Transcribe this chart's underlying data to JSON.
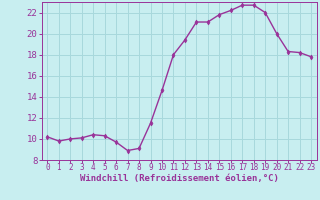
{
  "x": [
    0,
    1,
    2,
    3,
    4,
    5,
    6,
    7,
    8,
    9,
    10,
    11,
    12,
    13,
    14,
    15,
    16,
    17,
    18,
    19,
    20,
    21,
    22,
    23
  ],
  "y": [
    10.2,
    9.8,
    10.0,
    10.1,
    10.4,
    10.3,
    9.7,
    8.9,
    9.1,
    11.5,
    14.6,
    18.0,
    19.4,
    21.1,
    21.1,
    21.8,
    22.2,
    22.7,
    22.7,
    22.0,
    20.0,
    18.3,
    18.2,
    17.8
  ],
  "xlabel": "Windchill (Refroidissement éolien,°C)",
  "ylabel": "",
  "ylim": [
    8,
    23
  ],
  "xlim": [
    -0.5,
    23.5
  ],
  "yticks": [
    8,
    10,
    12,
    14,
    16,
    18,
    20,
    22
  ],
  "xticks": [
    0,
    1,
    2,
    3,
    4,
    5,
    6,
    7,
    8,
    9,
    10,
    11,
    12,
    13,
    14,
    15,
    16,
    17,
    18,
    19,
    20,
    21,
    22,
    23
  ],
  "line_color": "#993399",
  "marker": "d",
  "bg_color": "#c8eef0",
  "grid_color": "#a8d8dc",
  "label_color": "#993399",
  "tick_color": "#993399",
  "font_size_label": 6.5,
  "font_size_tick_x": 5.5,
  "font_size_tick_y": 6.5,
  "linewidth": 1.0,
  "markersize": 2.5
}
